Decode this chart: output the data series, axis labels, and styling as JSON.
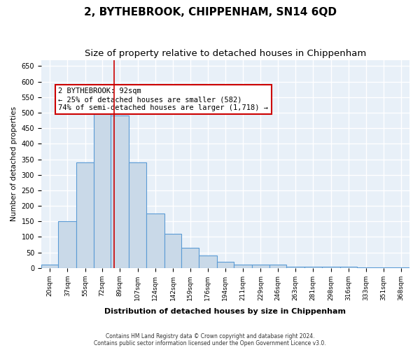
{
  "title": "2, BYTHEBROOK, CHIPPENHAM, SN14 6QD",
  "subtitle": "Size of property relative to detached houses in Chippenham",
  "xlabel": "Distribution of detached houses by size in Chippenham",
  "ylabel": "Number of detached properties",
  "bar_color": "#c9d9e8",
  "bar_edge_color": "#5b9bd5",
  "background_color": "#e8f0f8",
  "grid_color": "#ffffff",
  "annotation_text": "2 BYTHEBROOK: 92sqm\n← 25% of detached houses are smaller (582)\n74% of semi-detached houses are larger (1,718) →",
  "red_line_x": 92,
  "footer1": "Contains HM Land Registry data © Crown copyright and database right 2024.",
  "footer2": "Contains public sector information licensed under the Open Government Licence v3.0.",
  "categories": [
    "20sqm",
    "37sqm",
    "55sqm",
    "72sqm",
    "89sqm",
    "107sqm",
    "124sqm",
    "142sqm",
    "159sqm",
    "176sqm",
    "194sqm",
    "211sqm",
    "229sqm",
    "246sqm",
    "263sqm",
    "281sqm",
    "298sqm",
    "316sqm",
    "333sqm",
    "351sqm",
    "368sqm"
  ],
  "bar_left_edges": [
    20,
    37,
    55,
    72,
    89,
    107,
    124,
    142,
    159,
    176,
    194,
    211,
    229,
    246,
    263,
    281,
    298,
    316,
    333,
    351,
    368
  ],
  "bar_widths": [
    17,
    18,
    17,
    17,
    18,
    17,
    18,
    17,
    17,
    18,
    17,
    18,
    17,
    17,
    18,
    17,
    18,
    17,
    18,
    17,
    17
  ],
  "bar_heights": [
    10,
    150,
    340,
    520,
    490,
    340,
    175,
    110,
    65,
    40,
    20,
    10,
    10,
    10,
    5,
    5,
    5,
    5,
    2,
    2,
    2
  ],
  "ylim": [
    0,
    670
  ],
  "yticks": [
    0,
    50,
    100,
    150,
    200,
    250,
    300,
    350,
    400,
    450,
    500,
    550,
    600,
    650
  ],
  "title_fontsize": 11,
  "subtitle_fontsize": 9.5
}
